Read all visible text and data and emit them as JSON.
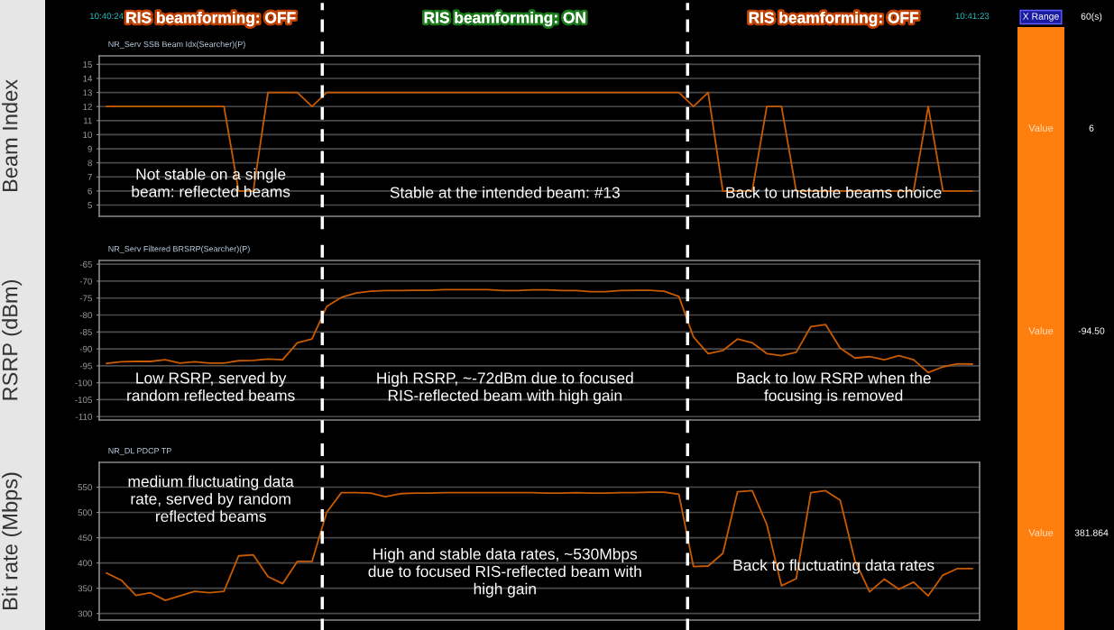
{
  "chart_data": [
    {
      "type": "line",
      "title": "NR_Serv SSB Beam Idx(Searcher)(P)",
      "ylabel": "Beam Index",
      "x": [
        10.673333,
        10.673611,
        10.673889,
        10.674167,
        10.674444,
        10.674722,
        10.675,
        10.675278,
        10.675556,
        10.675833,
        10.676111,
        10.676389,
        10.676667,
        10.676944,
        10.677222,
        10.6775,
        10.677778,
        10.678056,
        10.678333,
        10.678611,
        10.678889,
        10.679167,
        10.679444,
        10.679722,
        10.68,
        10.680278,
        10.680556,
        10.680833,
        10.681111,
        10.681389,
        10.681667,
        10.681944,
        10.682222,
        10.6825,
        10.682778,
        10.683056,
        10.683333,
        10.683611,
        10.683889,
        10.684167,
        10.684444,
        10.684722,
        10.685,
        10.685278,
        10.685556,
        10.685833,
        10.686111,
        10.686389,
        10.686667,
        10.686944,
        10.687222,
        10.6875,
        10.687778,
        10.688056,
        10.688333,
        10.688611,
        10.688889,
        10.689167,
        10.689444,
        10.689722
      ],
      "series": [
        {
          "color": "#c85a00",
          "values": [
            12,
            12,
            12,
            12,
            12,
            12,
            12,
            12,
            12,
            6,
            6,
            13,
            13,
            13,
            12,
            13,
            13,
            13,
            13,
            13,
            13,
            13,
            13,
            13,
            13,
            13,
            13,
            13,
            13,
            13,
            13,
            13,
            13,
            13,
            13,
            13,
            13,
            13,
            13,
            13,
            12,
            13,
            6,
            6,
            6,
            12,
            12,
            6,
            6,
            6,
            6,
            6,
            6,
            6,
            6,
            6,
            12,
            6,
            6,
            6
          ]
        }
      ],
      "xlim": [
        10.673194,
        10.689861
      ],
      "xticks": [
        {
          "value": 10.673333,
          "label": "10:40:24"
        },
        {
          "value": 10.689722,
          "label": "10:41:23"
        }
      ],
      "ylim": [
        4.2,
        15.6
      ],
      "yticks": [
        5,
        6,
        7,
        8,
        9,
        10,
        11,
        12,
        13,
        14,
        15
      ],
      "grid": "y",
      "ref_lines": [
        {
          "axis": "x",
          "value": 10.677417,
          "color": "#ffffff",
          "line_style": "dashed"
        },
        {
          "axis": "x",
          "value": 10.684333,
          "color": "#ffffff",
          "line_style": "dashed"
        }
      ],
      "annotations": [
        "RIS beamforming: OFF",
        "RIS beamforming: ON",
        "RIS beamforming: OFF",
        "X Range",
        "60(s)",
        "Not stable on a single\nbeam: reflected beams",
        "Stable at the intended beam: #13",
        "Back to unstable beams choice",
        "Value",
        "6"
      ]
    },
    {
      "type": "line",
      "title": "NR_Serv Filtered BRSRP(Searcher)(P)",
      "ylabel": "RSRP (dBm)",
      "x": [
        10.673333,
        10.673611,
        10.673889,
        10.674167,
        10.674444,
        10.674722,
        10.675,
        10.675278,
        10.675556,
        10.675833,
        10.676111,
        10.676389,
        10.676667,
        10.676944,
        10.677222,
        10.6775,
        10.677778,
        10.678056,
        10.678333,
        10.678611,
        10.678889,
        10.679167,
        10.679444,
        10.679722,
        10.68,
        10.680278,
        10.680556,
        10.680833,
        10.681111,
        10.681389,
        10.681667,
        10.681944,
        10.682222,
        10.6825,
        10.682778,
        10.683056,
        10.683333,
        10.683611,
        10.683889,
        10.684167,
        10.684444,
        10.684722,
        10.685,
        10.685278,
        10.685556,
        10.685833,
        10.686111,
        10.686389,
        10.686667,
        10.686944,
        10.687222,
        10.6875,
        10.687778,
        10.688056,
        10.688333,
        10.688611,
        10.688889,
        10.689167,
        10.689444,
        10.689722
      ],
      "series": [
        {
          "color": "#c85a00",
          "values": [
            -94.3,
            -93.8,
            -93.7,
            -93.7,
            -93.2,
            -94.2,
            -93.8,
            -94.2,
            -94.2,
            -93.5,
            -93.4,
            -93.0,
            -93.2,
            -88.2,
            -87.1,
            -77.5,
            -74.8,
            -73.5,
            -73.0,
            -72.8,
            -72.8,
            -72.7,
            -72.7,
            -72.5,
            -72.5,
            -72.5,
            -72.5,
            -72.8,
            -72.8,
            -72.6,
            -72.6,
            -72.8,
            -72.8,
            -73.1,
            -73.1,
            -72.8,
            -72.7,
            -72.7,
            -73.0,
            -74.5,
            -86.5,
            -91.4,
            -90.5,
            -87.1,
            -88.2,
            -91.4,
            -92.0,
            -91.0,
            -83.4,
            -82.8,
            -89.8,
            -92.7,
            -92.3,
            -93.2,
            -92.0,
            -93.2,
            -97.0,
            -95.3,
            -94.4,
            -94.5
          ]
        }
      ],
      "xlim": [
        10.673194,
        10.689861
      ],
      "ylim": [
        -111,
        -63.9
      ],
      "yticks": [
        -110,
        -105,
        -100,
        -95,
        -90,
        -85,
        -80,
        -75,
        -70,
        -65
      ],
      "grid": "y",
      "tick_labels": "y",
      "ref_lines": [
        {
          "axis": "x",
          "value": 10.677417,
          "color": "#ffffff",
          "line_style": "dashed"
        },
        {
          "axis": "x",
          "value": 10.684333,
          "color": "#ffffff",
          "line_style": "dashed"
        }
      ],
      "annotations": [
        "Low RSRP, served by\nrandom reflected beams",
        "High RSRP, ~-72dBm due to focused\nRIS-reflected beam with high gain",
        "Back to low RSRP when the\nfocusing is removed",
        "Value",
        "-94.50"
      ]
    },
    {
      "type": "line",
      "title": "NR_DL PDCP TP",
      "ylabel": "Bit rate (Mbps)",
      "x": [
        10.673333,
        10.673611,
        10.673889,
        10.674167,
        10.674444,
        10.674722,
        10.675,
        10.675278,
        10.675556,
        10.675833,
        10.676111,
        10.676389,
        10.676667,
        10.676944,
        10.677222,
        10.6775,
        10.677778,
        10.678056,
        10.678333,
        10.678611,
        10.678889,
        10.679167,
        10.679444,
        10.679722,
        10.68,
        10.680278,
        10.680556,
        10.680833,
        10.681111,
        10.681389,
        10.681667,
        10.681944,
        10.682222,
        10.6825,
        10.682778,
        10.683056,
        10.683333,
        10.683611,
        10.683889,
        10.684167,
        10.684444,
        10.684722,
        10.685,
        10.685278,
        10.685556,
        10.685833,
        10.686111,
        10.686389,
        10.686667,
        10.686944,
        10.687222,
        10.6875,
        10.687778,
        10.688056,
        10.688333,
        10.688611,
        10.688889,
        10.689167,
        10.689444,
        10.689722
      ],
      "series": [
        {
          "color": "#c85a00",
          "values": [
            380,
            366,
            336,
            341,
            326,
            335,
            344,
            341,
            344,
            414,
            416,
            373,
            359,
            403,
            403,
            500,
            539,
            539,
            538,
            531,
            537,
            538,
            538,
            539,
            539,
            539,
            539,
            539,
            539,
            539,
            538,
            538,
            539,
            538,
            538,
            539,
            539,
            540,
            540,
            536,
            393,
            394,
            419,
            541,
            543,
            476,
            355,
            369,
            539,
            543,
            524,
            405,
            343,
            368,
            348,
            362,
            335,
            376,
            389,
            389
          ]
        }
      ],
      "xlim": [
        10.673194,
        10.689861
      ],
      "ylim": [
        287,
        599
      ],
      "yticks": [
        300,
        350,
        400,
        450,
        500,
        550
      ],
      "grid": "y",
      "tick_labels": "y",
      "ref_lines": [
        {
          "axis": "x",
          "value": 10.677417,
          "color": "#ffffff",
          "line_style": "dashed"
        },
        {
          "axis": "x",
          "value": 10.684333,
          "color": "#ffffff",
          "line_style": "dashed"
        }
      ],
      "annotations": [
        "medium fluctuating data\nrate, served by random\nreflected beams",
        "High and stable data rates, ~530Mbps\ndue to focused RIS-reflected beam with\nhigh gain",
        "Back to fluctuating data rates",
        "Value",
        "381.864"
      ]
    }
  ]
}
